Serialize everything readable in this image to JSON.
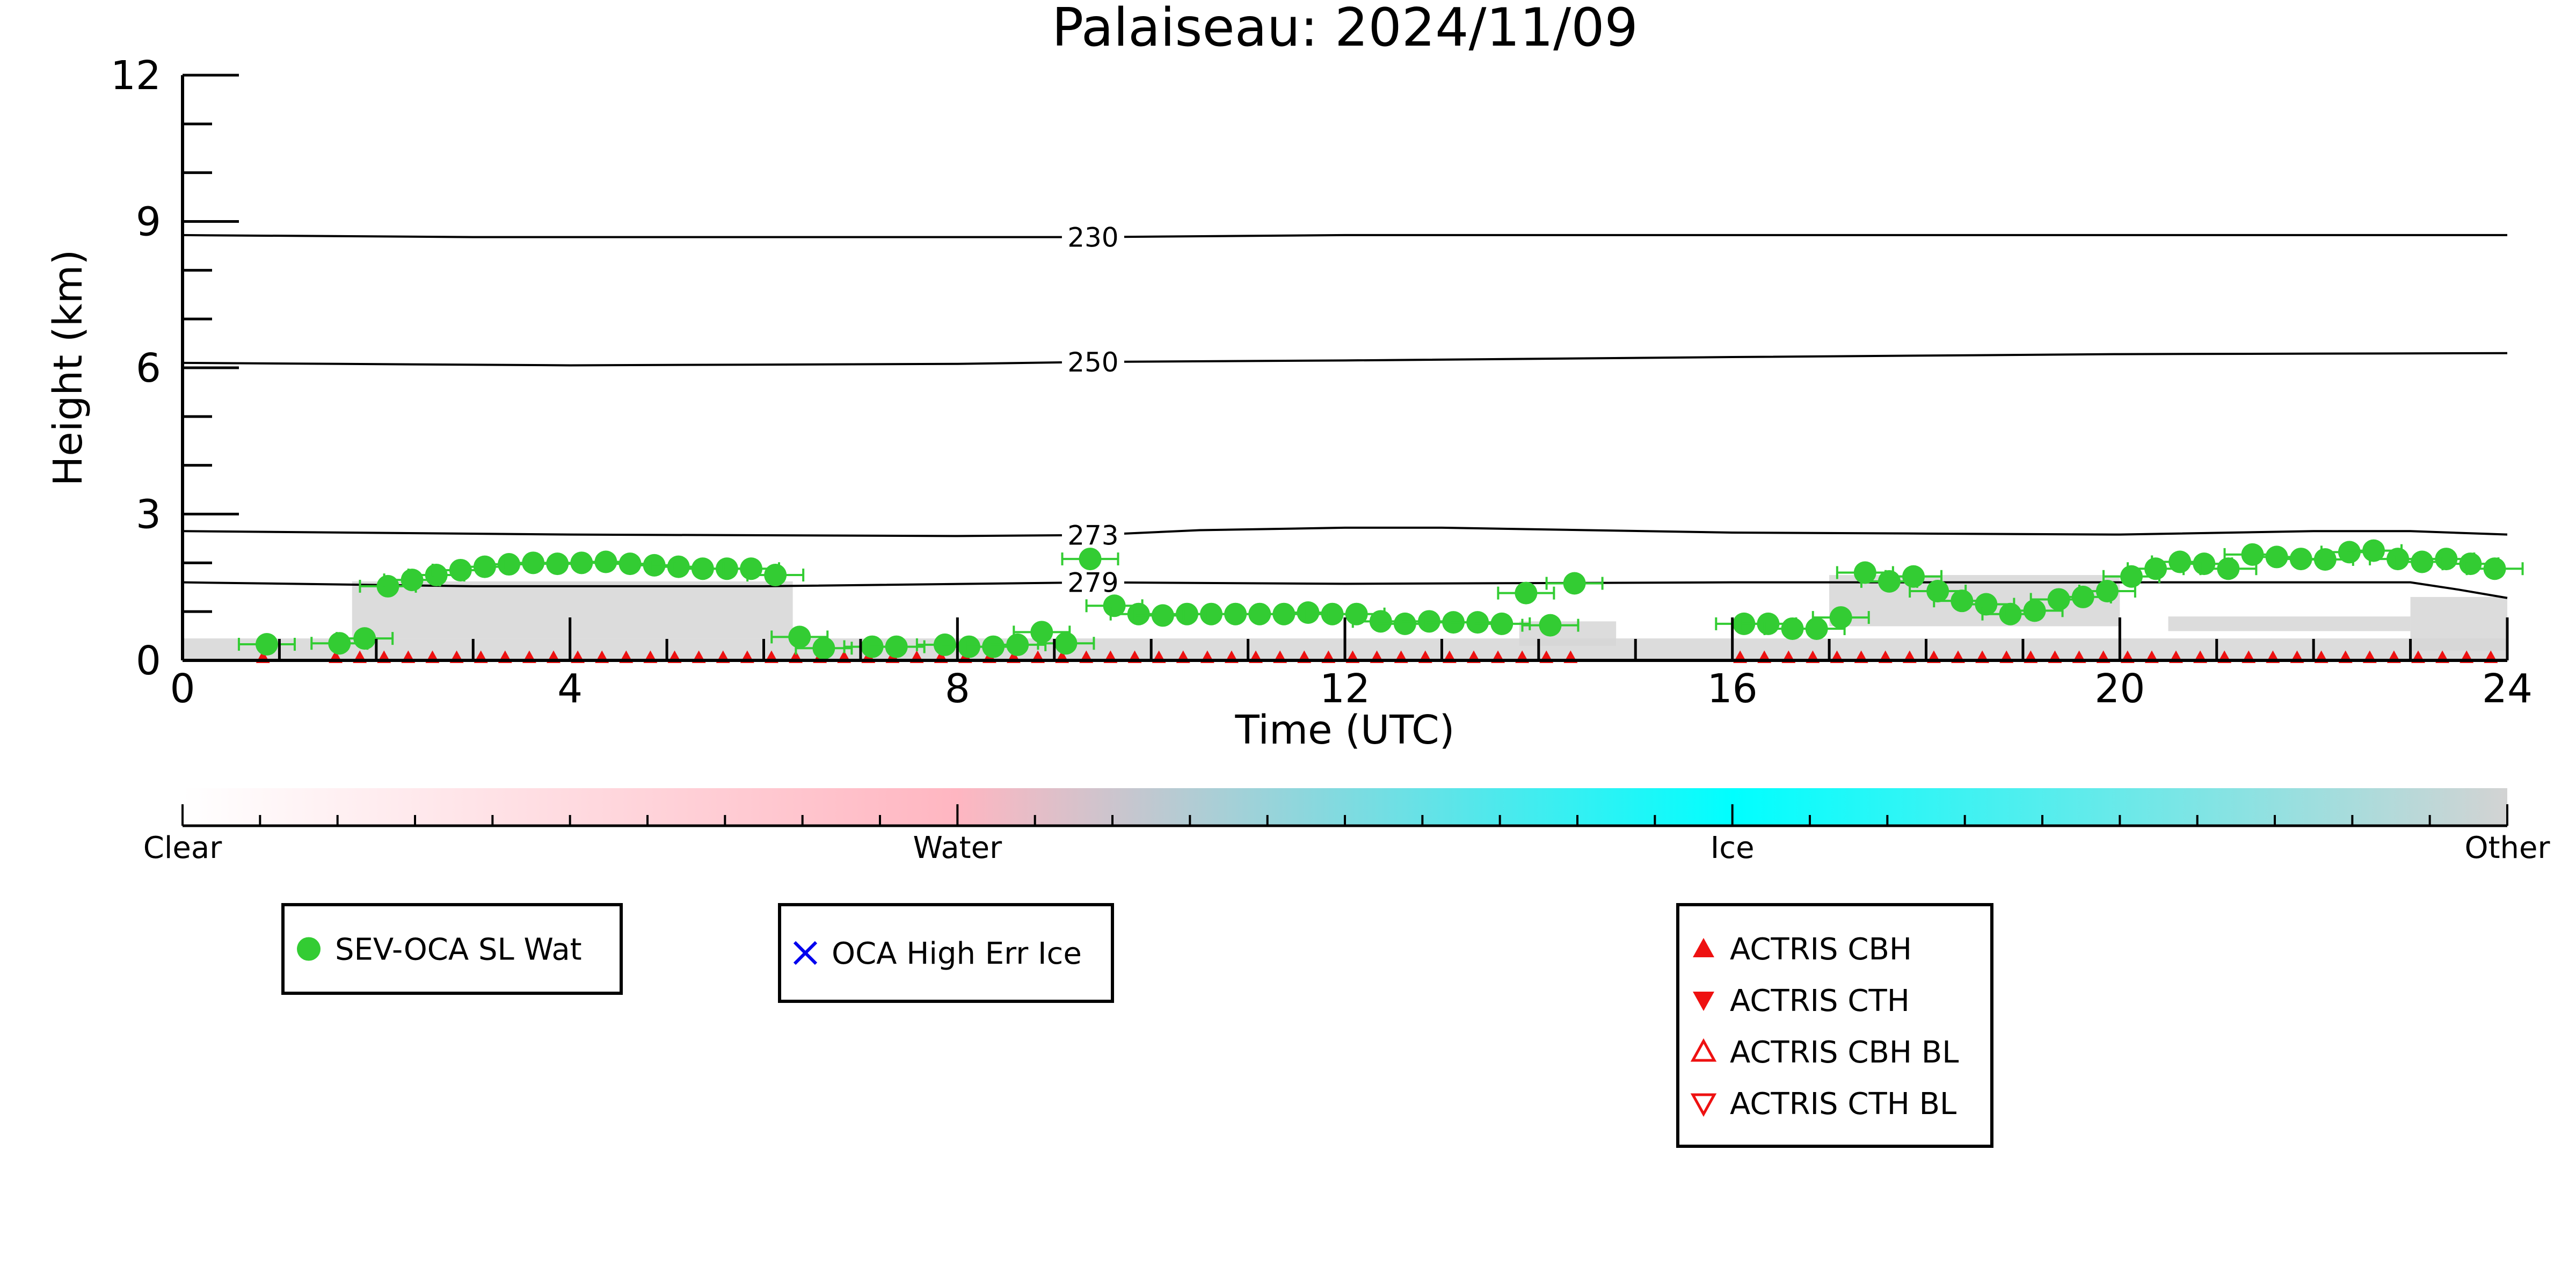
{
  "chart_data": {
    "type": "scatter",
    "title": "Palaiseau: 2024/11/09",
    "xlabel": "Time (UTC)",
    "ylabel": "Height (km)",
    "xlim": [
      0,
      24
    ],
    "ylim": [
      0,
      12
    ],
    "x_ticks": [
      0,
      4,
      8,
      12,
      16,
      20,
      24
    ],
    "y_ticks": [
      0,
      3,
      6,
      9,
      12
    ],
    "grid": false,
    "isotherms": [
      {
        "label": "230",
        "points": [
          [
            0,
            8.72
          ],
          [
            3,
            8.68
          ],
          [
            6,
            8.68
          ],
          [
            9.4,
            8.68
          ],
          [
            12,
            8.72
          ],
          [
            16,
            8.72
          ],
          [
            20,
            8.72
          ],
          [
            24,
            8.72
          ]
        ]
      },
      {
        "label": "250",
        "points": [
          [
            0,
            6.1
          ],
          [
            4,
            6.05
          ],
          [
            8,
            6.08
          ],
          [
            9.4,
            6.12
          ],
          [
            12,
            6.15
          ],
          [
            16,
            6.22
          ],
          [
            20,
            6.28
          ],
          [
            24,
            6.3
          ]
        ]
      },
      {
        "label": "273",
        "points": [
          [
            0,
            2.65
          ],
          [
            4,
            2.58
          ],
          [
            8,
            2.55
          ],
          [
            9.4,
            2.57
          ],
          [
            10.5,
            2.67
          ],
          [
            12,
            2.72
          ],
          [
            13,
            2.72
          ],
          [
            16,
            2.62
          ],
          [
            18,
            2.6
          ],
          [
            20,
            2.58
          ],
          [
            22,
            2.65
          ],
          [
            23,
            2.65
          ],
          [
            24,
            2.58
          ]
        ]
      },
      {
        "label": "279",
        "points": [
          [
            0,
            1.6
          ],
          [
            3,
            1.52
          ],
          [
            6,
            1.52
          ],
          [
            9.4,
            1.6
          ],
          [
            12,
            1.57
          ],
          [
            16,
            1.6
          ],
          [
            20,
            1.6
          ],
          [
            23,
            1.6
          ],
          [
            23.5,
            1.45
          ],
          [
            24,
            1.28
          ]
        ]
      }
    ],
    "series": [
      {
        "name": "SEV-OCA SL Wat",
        "color": "#33cc33",
        "x": [
          0.87,
          1.62,
          1.88,
          2.12,
          2.37,
          2.62,
          2.87,
          3.12,
          3.37,
          3.62,
          3.87,
          4.12,
          4.37,
          4.62,
          4.87,
          5.12,
          5.37,
          5.62,
          5.87,
          6.12,
          6.37,
          6.62,
          7.12,
          7.37,
          7.87,
          8.12,
          8.37,
          8.62,
          8.87,
          9.12,
          9.37,
          9.62,
          9.87,
          10.12,
          10.37,
          10.62,
          10.87,
          11.12,
          11.37,
          11.62,
          11.87,
          12.12,
          12.37,
          12.62,
          12.87,
          13.12,
          13.37,
          13.62,
          13.87,
          14.12,
          14.37,
          16.12,
          16.37,
          16.62,
          16.87,
          17.12,
          17.37,
          17.62,
          17.87,
          18.12,
          18.37,
          18.62,
          18.87,
          19.12,
          19.37,
          19.62,
          19.87,
          20.12,
          20.37,
          20.62,
          20.87,
          21.12,
          21.37,
          21.62,
          21.87,
          22.12,
          22.37,
          22.62,
          22.87,
          23.12,
          23.37,
          23.62,
          23.87
        ],
        "y": [
          0.33,
          0.35,
          0.45,
          1.52,
          1.65,
          1.75,
          1.85,
          1.92,
          1.97,
          2.0,
          1.98,
          2.0,
          2.02,
          1.98,
          1.95,
          1.92,
          1.88,
          1.88,
          1.88,
          1.75,
          0.48,
          0.25,
          0.28,
          0.28,
          0.32,
          0.28,
          0.28,
          0.32,
          0.58,
          0.35,
          2.08,
          1.12,
          0.95,
          0.92,
          0.95,
          0.95,
          0.95,
          0.95,
          0.95,
          0.98,
          0.95,
          0.95,
          0.8,
          0.75,
          0.8,
          0.78,
          0.78,
          0.75,
          1.38,
          0.72,
          1.58,
          0.75,
          0.75,
          0.65,
          0.65,
          0.88,
          1.8,
          1.62,
          1.72,
          1.42,
          1.22,
          1.15,
          0.95,
          1.02,
          1.25,
          1.3,
          1.42,
          1.72,
          1.88,
          2.02,
          1.98,
          1.88,
          2.17,
          2.12,
          2.08,
          2.07,
          2.22,
          2.25,
          2.08,
          2.02,
          2.08,
          1.98,
          1.88
        ]
      },
      {
        "name": "ACTRIS CBH",
        "color": "#ee1111",
        "marker": "triangle-up",
        "x": [
          0.83,
          1.58,
          1.83,
          2.08,
          2.33,
          2.58,
          2.83,
          3.08,
          3.33,
          3.58,
          3.83,
          4.08,
          4.33,
          4.58,
          4.83,
          5.08,
          5.33,
          5.58,
          5.83,
          6.08,
          6.33,
          6.58,
          6.83,
          7.08,
          7.33,
          7.58,
          7.83,
          8.08,
          8.33,
          8.58,
          8.83,
          9.08,
          9.33,
          9.58,
          9.83,
          10.08,
          10.33,
          10.58,
          10.83,
          11.08,
          11.33,
          11.58,
          11.83,
          12.08,
          12.33,
          12.58,
          12.83,
          13.08,
          13.33,
          13.58,
          13.83,
          14.08,
          14.33,
          16.08,
          16.33,
          16.58,
          16.83,
          17.08,
          17.33,
          17.58,
          17.83,
          18.08,
          18.33,
          18.58,
          18.83,
          19.08,
          19.33,
          19.58,
          19.83,
          20.08,
          20.33,
          20.58,
          20.83,
          21.08,
          21.33,
          21.58,
          21.83,
          22.08,
          22.33,
          22.58,
          22.83,
          23.08,
          23.33,
          23.58,
          23.83
        ],
        "y": [
          0.06,
          0.06,
          0.06,
          0.06,
          0.06,
          0.06,
          0.06,
          0.06,
          0.06,
          0.06,
          0.06,
          0.06,
          0.06,
          0.06,
          0.06,
          0.06,
          0.06,
          0.06,
          0.06,
          0.06,
          0.06,
          0.06,
          0.06,
          0.06,
          0.06,
          0.06,
          0.06,
          0.06,
          0.06,
          0.06,
          0.06,
          0.06,
          0.06,
          0.06,
          0.06,
          0.06,
          0.06,
          0.06,
          0.06,
          0.06,
          0.06,
          0.06,
          0.06,
          0.06,
          0.06,
          0.06,
          0.06,
          0.06,
          0.06,
          0.06,
          0.06,
          0.06,
          0.06,
          0.06,
          0.06,
          0.06,
          0.06,
          0.06,
          0.06,
          0.06,
          0.06,
          0.06,
          0.06,
          0.06,
          0.06,
          0.06,
          0.06,
          0.06,
          0.06,
          0.06,
          0.06,
          0.06,
          0.06,
          0.06,
          0.06,
          0.06,
          0.06,
          0.06,
          0.06,
          0.06,
          0.06,
          0.06,
          0.06,
          0.06,
          0.06
        ]
      }
    ],
    "background_mask": [
      {
        "x0": 0,
        "x1": 24,
        "y0": 0,
        "y1": 0.45
      },
      {
        "x0": 1.75,
        "x1": 6.3,
        "y0": 0.45,
        "y1": 1.62
      },
      {
        "x0": 13.8,
        "x1": 14.8,
        "y0": 0.3,
        "y1": 0.8
      },
      {
        "x0": 17.0,
        "x1": 20.0,
        "y0": 0.7,
        "y1": 1.75
      },
      {
        "x0": 20.5,
        "x1": 23.0,
        "y0": 0.6,
        "y1": 0.9
      },
      {
        "x0": 23.0,
        "x1": 24,
        "y0": 0.2,
        "y1": 1.3
      }
    ],
    "colorbar": {
      "labels": [
        "Clear",
        "Water",
        "Ice",
        "Other"
      ],
      "colors": [
        "#ffffff",
        "#ffb6c1",
        "#00ffff",
        "#d3d3d3"
      ]
    },
    "legends": [
      {
        "entries": [
          {
            "label": "SEV-OCA SL Wat",
            "marker": "circle",
            "color": "#33cc33"
          }
        ]
      },
      {
        "entries": [
          {
            "label": "OCA High Err Ice",
            "marker": "x",
            "color": "#0000ee"
          }
        ]
      },
      {
        "entries": [
          {
            "label": "ACTRIS CBH",
            "marker": "triangle-up",
            "color": "#ee1111"
          },
          {
            "label": "ACTRIS CTH",
            "marker": "triangle-down",
            "color": "#ee1111"
          },
          {
            "label": "ACTRIS CBH BL",
            "marker": "triangle-up-open",
            "color": "#ee1111"
          },
          {
            "label": "ACTRIS CTH BL",
            "marker": "triangle-down-open",
            "color": "#ee1111"
          }
        ]
      }
    ]
  }
}
